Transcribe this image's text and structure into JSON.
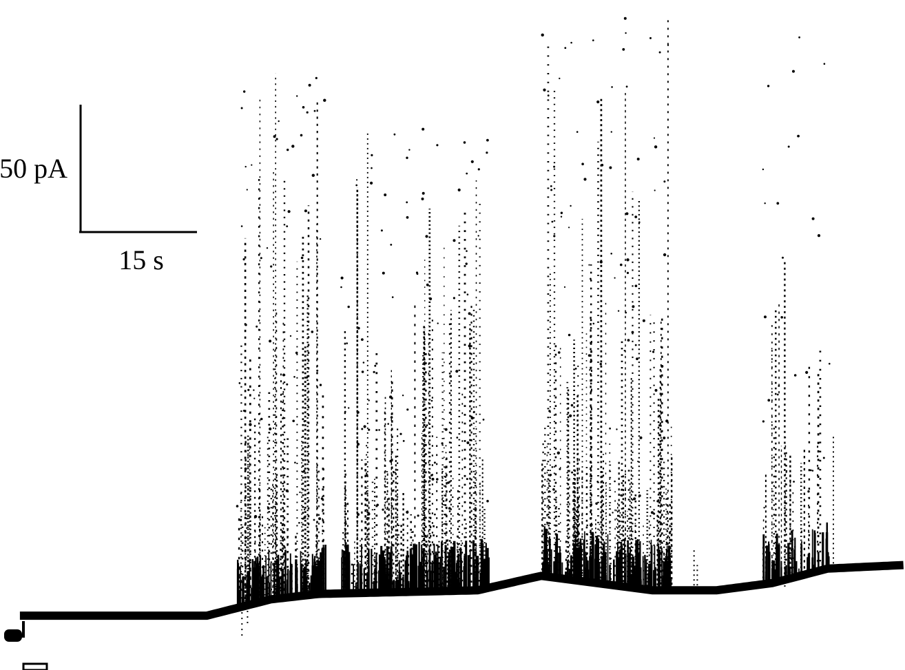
{
  "figure": {
    "background": "#ffffff",
    "ink": "#000000"
  },
  "chart_data": {
    "type": "scatter",
    "description_kind": "current trace with event bursts",
    "title": "",
    "xlabel": "",
    "ylabel": "",
    "scale_bar": {
      "current_label": "50 pA",
      "time_label": "15 s",
      "current_value": 50,
      "current_unit": "pA",
      "time_value": 15,
      "time_unit": "s"
    },
    "x_units": "s",
    "y_units": "pA",
    "xlim": [
      0,
      113.7
    ],
    "ylim": [
      -15,
      170
    ],
    "baseline": {
      "x": [
        0,
        12,
        26,
        34,
        40,
        50,
        60,
        68,
        75,
        82,
        90,
        97,
        104,
        113.7
      ],
      "y": [
        0,
        0,
        0,
        4.5,
        6,
        6.5,
        7,
        11,
        9,
        7,
        7,
        9,
        13,
        14
      ]
    },
    "bursts": [
      {
        "start": 29.8,
        "end": 40.9,
        "max_height": 146,
        "density": 1.0
      },
      {
        "start": 42.8,
        "end": 61.4,
        "max_height": 128,
        "density": 0.9
      },
      {
        "start": 68.1,
        "end": 84.4,
        "max_height": 158,
        "density": 1.0
      },
      {
        "start": 95.8,
        "end": 104.3,
        "max_height": 150,
        "density": 0.55
      }
    ],
    "isolated_events": [
      {
        "x": 87.2,
        "y": 12
      },
      {
        "x": 87.6,
        "y": 7
      },
      {
        "x": 104.7,
        "y": 37
      }
    ],
    "downward_events": [
      {
        "x": 30.4,
        "y": -8
      },
      {
        "x": 31.1,
        "y": -6
      },
      {
        "x": 98.6,
        "y": -3
      }
    ]
  }
}
